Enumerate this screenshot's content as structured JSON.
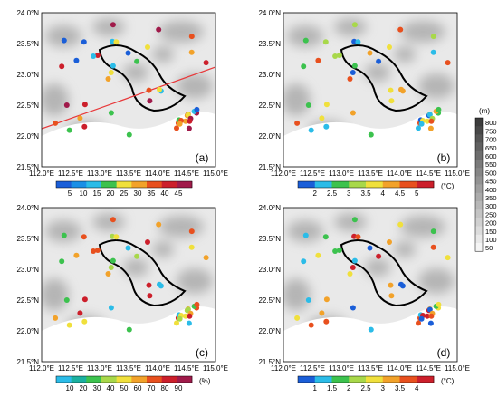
{
  "axes": {
    "lat_ticks": [
      "24.0°N",
      "23.5°N",
      "23.0°N",
      "22.5°N",
      "22.0°N",
      "21.5°N"
    ],
    "lon_ticks": [
      "112.0°E",
      "112.5°E",
      "113.0°E",
      "113.5°E",
      "114.0°E",
      "114.5°E",
      "115.0°E"
    ]
  },
  "panels": [
    {
      "label": "(a)",
      "cb_ticks": [
        "5",
        "10",
        "15",
        "20",
        "25",
        "30",
        "35",
        "40",
        "45"
      ],
      "cb_unit": "",
      "cb_colors": [
        "#1a5ed8",
        "#1a8fe6",
        "#2bbce8",
        "#3cc24e",
        "#f0e03c",
        "#f2a22a",
        "#e8501e",
        "#cc1f2b",
        "#a01a4a"
      ],
      "palette": [
        "#a01a4a",
        "#cc1f2b",
        "#e8501e",
        "#f2a22a",
        "#f0e03c",
        "#3cc24e",
        "#2bbce8",
        "#1a5ed8"
      ]
    },
    {
      "label": "(b)",
      "cb_ticks": [
        "2",
        "2.5",
        "3",
        "3.5",
        "4",
        "4.5",
        "5"
      ],
      "cb_unit": "(°C)",
      "cb_colors": [
        "#1a5ed8",
        "#2bbce8",
        "#3cc24e",
        "#a8d84a",
        "#f0e03c",
        "#f2a22a",
        "#e8501e",
        "#cc1f2b"
      ],
      "palette": [
        "#f2a22a",
        "#3cc24e",
        "#a8d84a",
        "#e8501e",
        "#f0e03c",
        "#2bbce8",
        "#1a5ed8"
      ]
    },
    {
      "label": "(c)",
      "cb_ticks": [
        "10",
        "20",
        "30",
        "40",
        "50",
        "60",
        "70",
        "80",
        "90"
      ],
      "cb_unit": "(%)",
      "cb_colors": [
        "#2bbce8",
        "#1ab0a0",
        "#3cc24e",
        "#a8d84a",
        "#f0e03c",
        "#f2a22a",
        "#e8501e",
        "#cc1f2b",
        "#a01a4a"
      ],
      "palette": [
        "#2bbce8",
        "#3cc24e",
        "#e8501e",
        "#f2a22a",
        "#cc1f2b",
        "#f0e03c",
        "#a8d84a"
      ]
    },
    {
      "label": "(d)",
      "cb_ticks": [
        "1",
        "1.5",
        "2",
        "2.5",
        "3",
        "3.5",
        "4"
      ],
      "cb_unit": "(°C)",
      "cb_colors": [
        "#1a5ed8",
        "#2bbce8",
        "#3cc24e",
        "#a8d84a",
        "#f0e03c",
        "#f2a22a",
        "#e8501e",
        "#cc1f2b"
      ],
      "palette": [
        "#1a5ed8",
        "#2bbce8",
        "#3cc24e",
        "#f0e03c",
        "#f2a22a",
        "#e8501e",
        "#cc1f2b"
      ]
    }
  ],
  "elevation_bar": {
    "unit": "(m)",
    "ticks": [
      "800",
      "750",
      "700",
      "650",
      "600",
      "550",
      "500",
      "450",
      "400",
      "350",
      "300",
      "250",
      "200",
      "150",
      "100",
      "50"
    ]
  },
  "colors": {
    "transect_line": "#e8383a",
    "boundary": "#000000"
  }
}
